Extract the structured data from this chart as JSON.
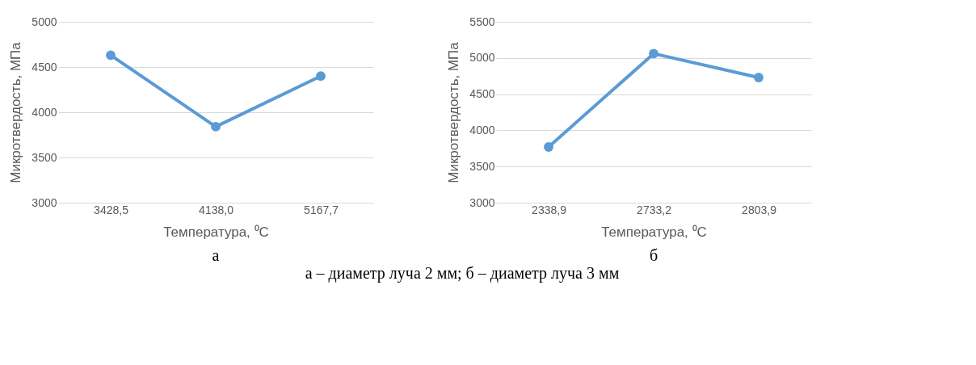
{
  "chart_data": [
    {
      "type": "line",
      "categories": [
        "3428,5",
        "4138,0",
        "5167,7"
      ],
      "series": [
        {
          "color": "#5b9bd5",
          "values": [
            4630,
            3840,
            4400
          ]
        }
      ],
      "xlabel": "Температура, ⁰C",
      "ylabel": "Микротвердость, МПа",
      "ylim": [
        3000,
        5000
      ],
      "yticks": [
        3000,
        3500,
        4000,
        4500,
        5000
      ],
      "grid": "y",
      "marker": "circle",
      "line_style": "solid",
      "annotations": [
        "а",
        "а – диаметр луча 2 мм; б – диаметр луча 3 мм"
      ]
    },
    {
      "type": "line",
      "categories": [
        "2338,9",
        "2733,2",
        "2803,9"
      ],
      "series": [
        {
          "color": "#5b9bd5",
          "values": [
            3770,
            5060,
            4730
          ]
        }
      ],
      "xlabel": "Температура, ⁰C",
      "ylabel": "Микротвердость, МПа",
      "ylim": [
        3000,
        5500
      ],
      "yticks": [
        3000,
        3500,
        4000,
        4500,
        5000,
        5500
      ],
      "grid": "y",
      "marker": "circle",
      "line_style": "solid",
      "annotations": [
        "б"
      ]
    }
  ]
}
